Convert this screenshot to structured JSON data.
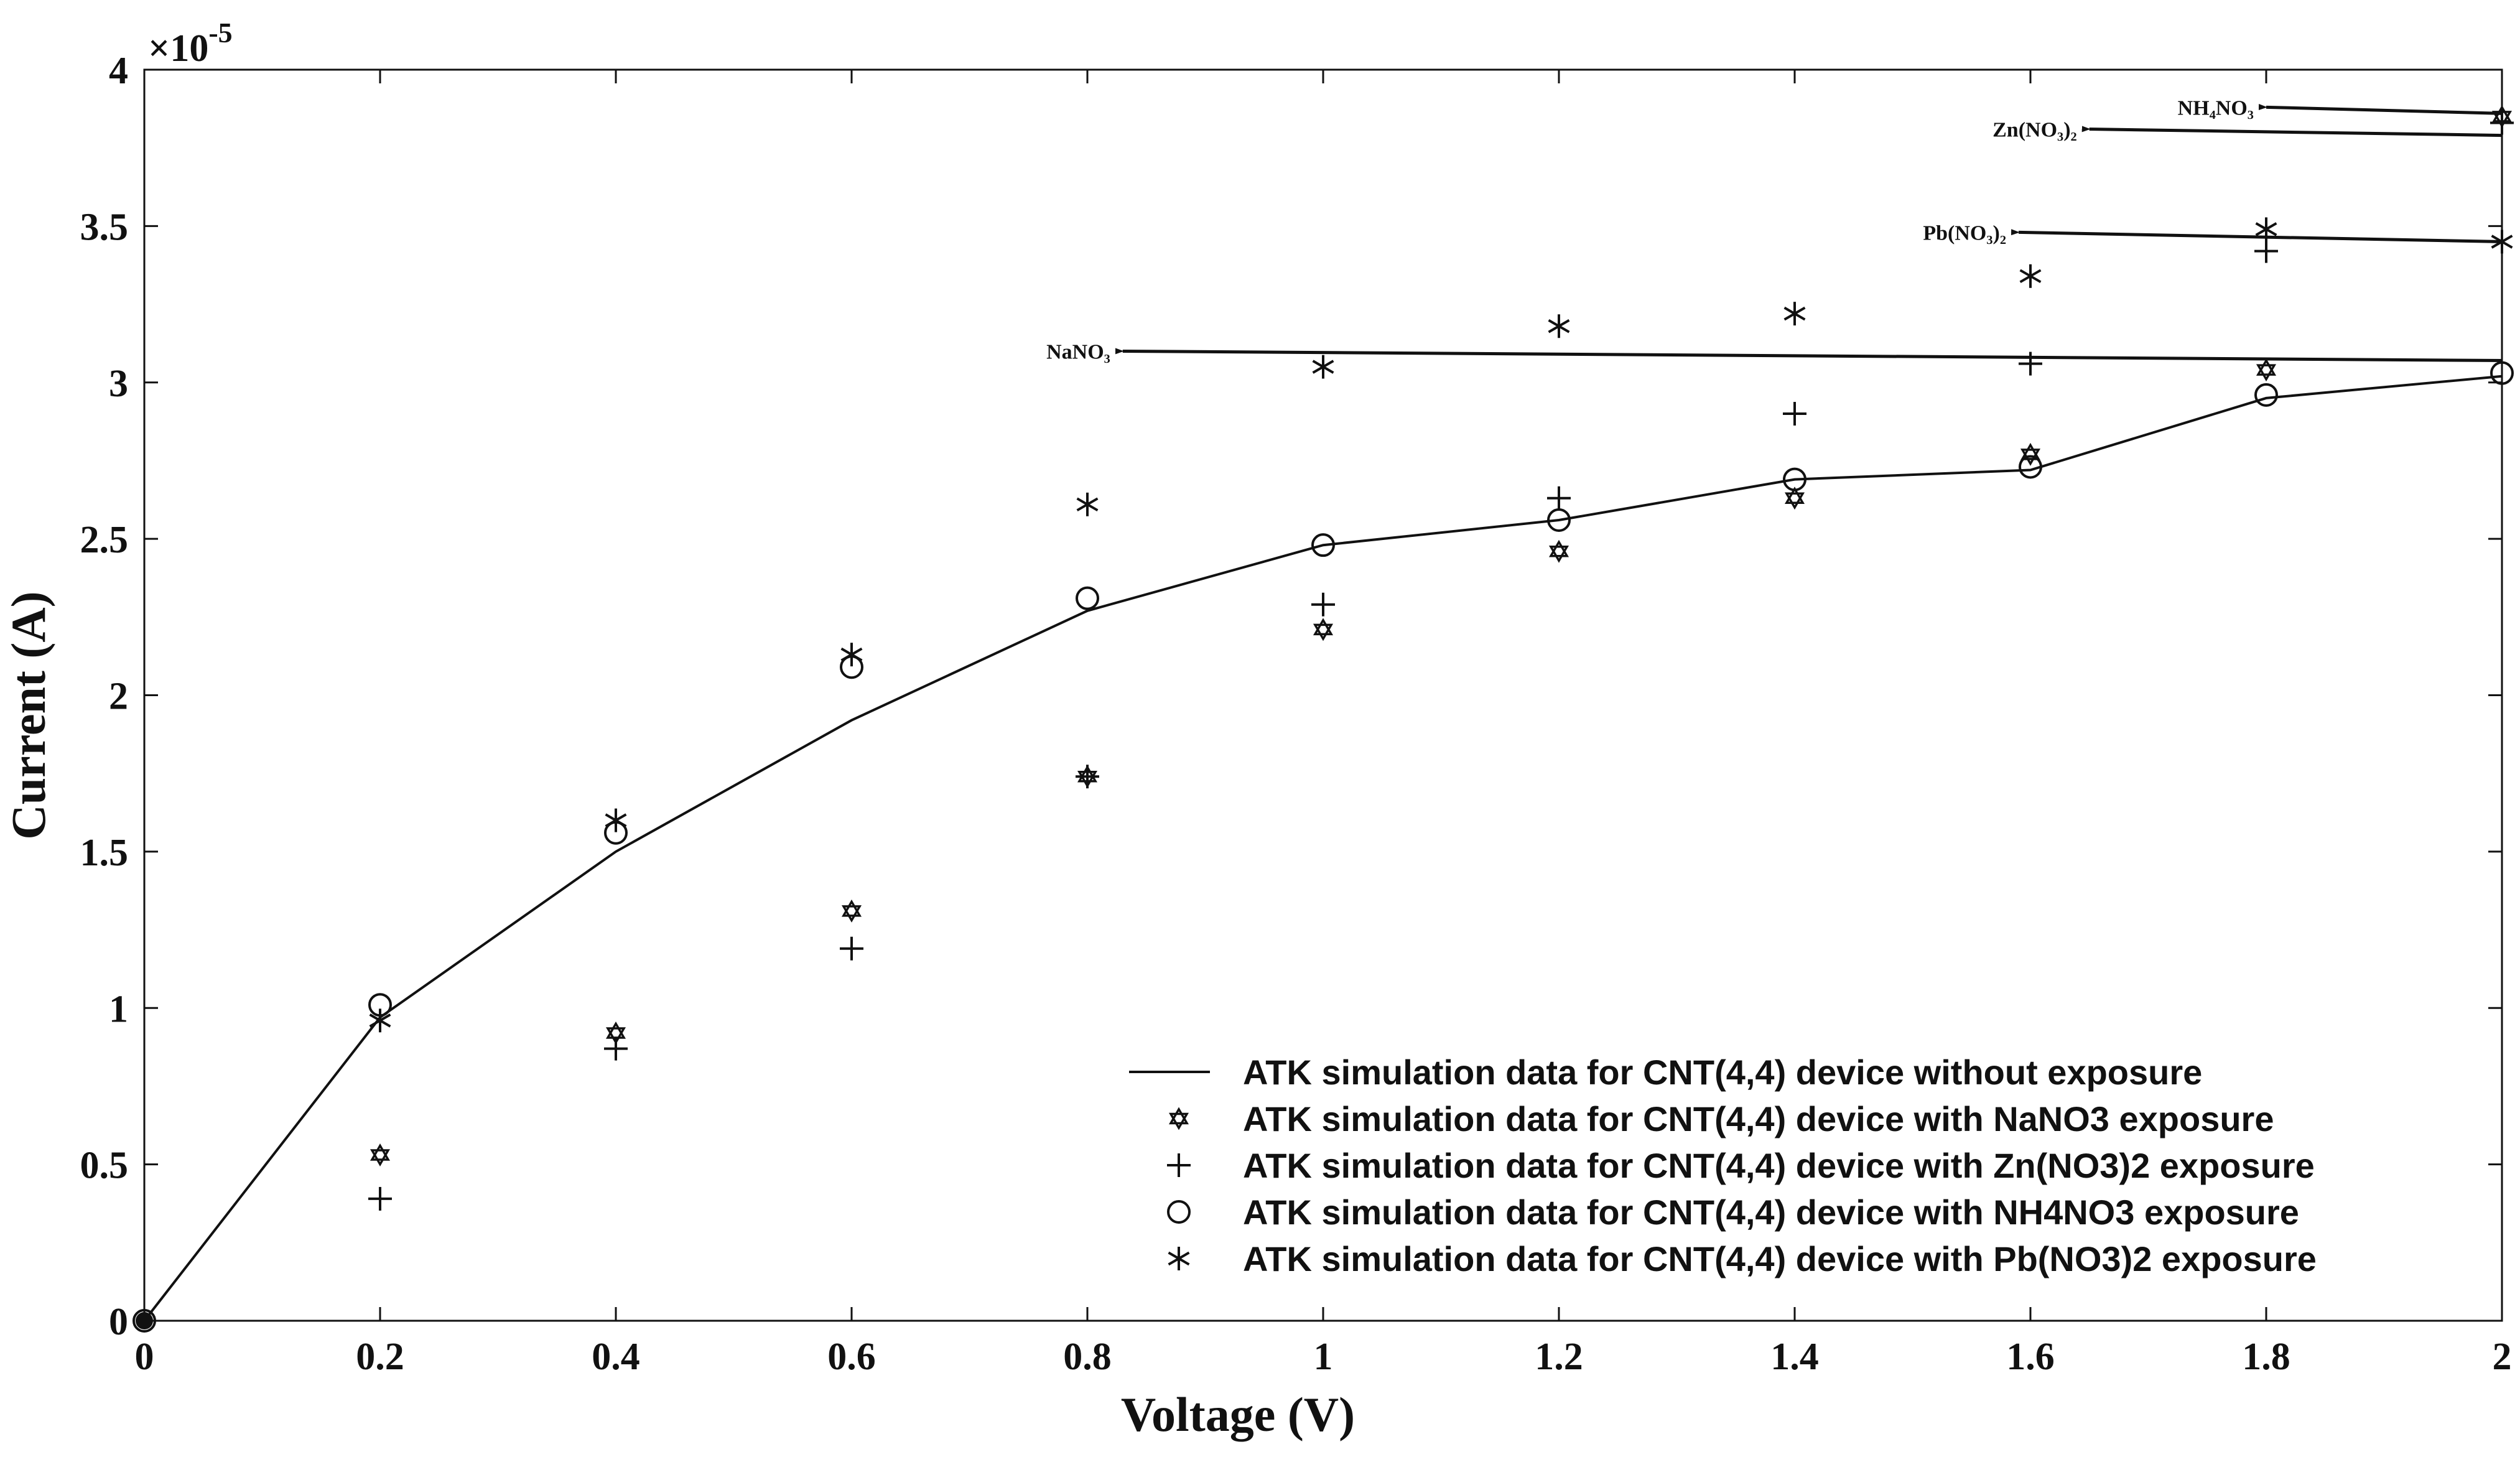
{
  "chart_data": {
    "type": "line",
    "title": "",
    "xlabel": "Voltage (V)",
    "ylabel": "Current (A)",
    "y_exponent_label": "×10",
    "y_exponent_power": "-5",
    "xlim": [
      0,
      2
    ],
    "ylim": [
      0,
      4
    ],
    "x_ticks": [
      0,
      0.2,
      0.4,
      0.6,
      0.8,
      1,
      1.2,
      1.4,
      1.6,
      1.8,
      2
    ],
    "x_tick_labels": [
      "0",
      "0.2",
      "0.4",
      "0.6",
      "0.8",
      "1",
      "1.2",
      "1.4",
      "1.6",
      "1.8",
      "2"
    ],
    "y_ticks": [
      0,
      0.5,
      1,
      1.5,
      2,
      2.5,
      3,
      3.5,
      4
    ],
    "y_tick_labels": [
      "0",
      "0.5",
      "1",
      "1.5",
      "2",
      "2.5",
      "3",
      "3.5",
      "4"
    ],
    "grid": false,
    "legend_position": "bottom-right",
    "series": [
      {
        "name": "ATK simulation data for CNT(4,4) device without exposure",
        "style": "line",
        "x": [
          0,
          0.2,
          0.4,
          0.6,
          0.8,
          1.0,
          1.2,
          1.4,
          1.6,
          1.8,
          2.0
        ],
        "y": [
          0,
          0.97,
          1.5,
          1.92,
          2.27,
          2.48,
          2.56,
          2.69,
          2.72,
          2.95,
          3.02
        ]
      },
      {
        "name": "ATK simulation data for CNT(4,4) device with NaNO3 exposure",
        "style": "hexagram",
        "x": [
          0.2,
          0.4,
          0.6,
          0.8,
          1.0,
          1.2,
          1.4,
          1.6,
          1.8,
          2.0
        ],
        "y": [
          0.53,
          0.92,
          1.31,
          1.74,
          2.21,
          2.46,
          2.63,
          2.77,
          3.04,
          3.85
        ]
      },
      {
        "name": "ATK simulation data for CNT(4,4) device with Zn(NO3)2 exposure",
        "style": "plus",
        "x": [
          0.2,
          0.4,
          0.6,
          0.8,
          1.0,
          1.2,
          1.4,
          1.6,
          1.8,
          2.0
        ],
        "y": [
          0.39,
          0.87,
          1.19,
          1.74,
          2.29,
          2.63,
          2.9,
          3.06,
          3.42,
          3.83
        ]
      },
      {
        "name": "ATK simulation data for CNT(4,4) device with NH4NO3 exposure",
        "style": "circle",
        "x": [
          0,
          0.2,
          0.4,
          0.6,
          0.8,
          1.0,
          1.2,
          1.4,
          1.6,
          1.8,
          2.0
        ],
        "y": [
          0,
          1.01,
          1.56,
          2.09,
          2.31,
          2.48,
          2.56,
          2.69,
          2.73,
          2.96,
          3.03
        ]
      },
      {
        "name": "ATK simulation data for CNT(4,4) device with Pb(NO3)2 exposure",
        "style": "asterisk",
        "x": [
          0.2,
          0.4,
          0.6,
          0.8,
          1.0,
          1.2,
          1.4,
          1.6,
          1.8,
          2.0
        ],
        "y": [
          0.96,
          1.6,
          2.13,
          2.61,
          3.05,
          3.18,
          3.22,
          3.34,
          3.49,
          3.45
        ]
      }
    ],
    "annotations": [
      {
        "text": "NH₄NO₃",
        "arrow_from": [
          2.0,
          3.86
        ],
        "arrow_to": [
          1.8,
          3.88
        ]
      },
      {
        "text": "Zn(NO₃)₂",
        "arrow_from": [
          2.0,
          3.79
        ],
        "arrow_to": [
          1.65,
          3.81
        ]
      },
      {
        "text": "Pb(NO₃)₂",
        "arrow_from": [
          2.0,
          3.45
        ],
        "arrow_to": [
          1.59,
          3.48
        ]
      },
      {
        "text": "NaNO₃",
        "arrow_from": [
          2.0,
          3.07
        ],
        "arrow_to": [
          0.83,
          3.1
        ]
      }
    ]
  }
}
